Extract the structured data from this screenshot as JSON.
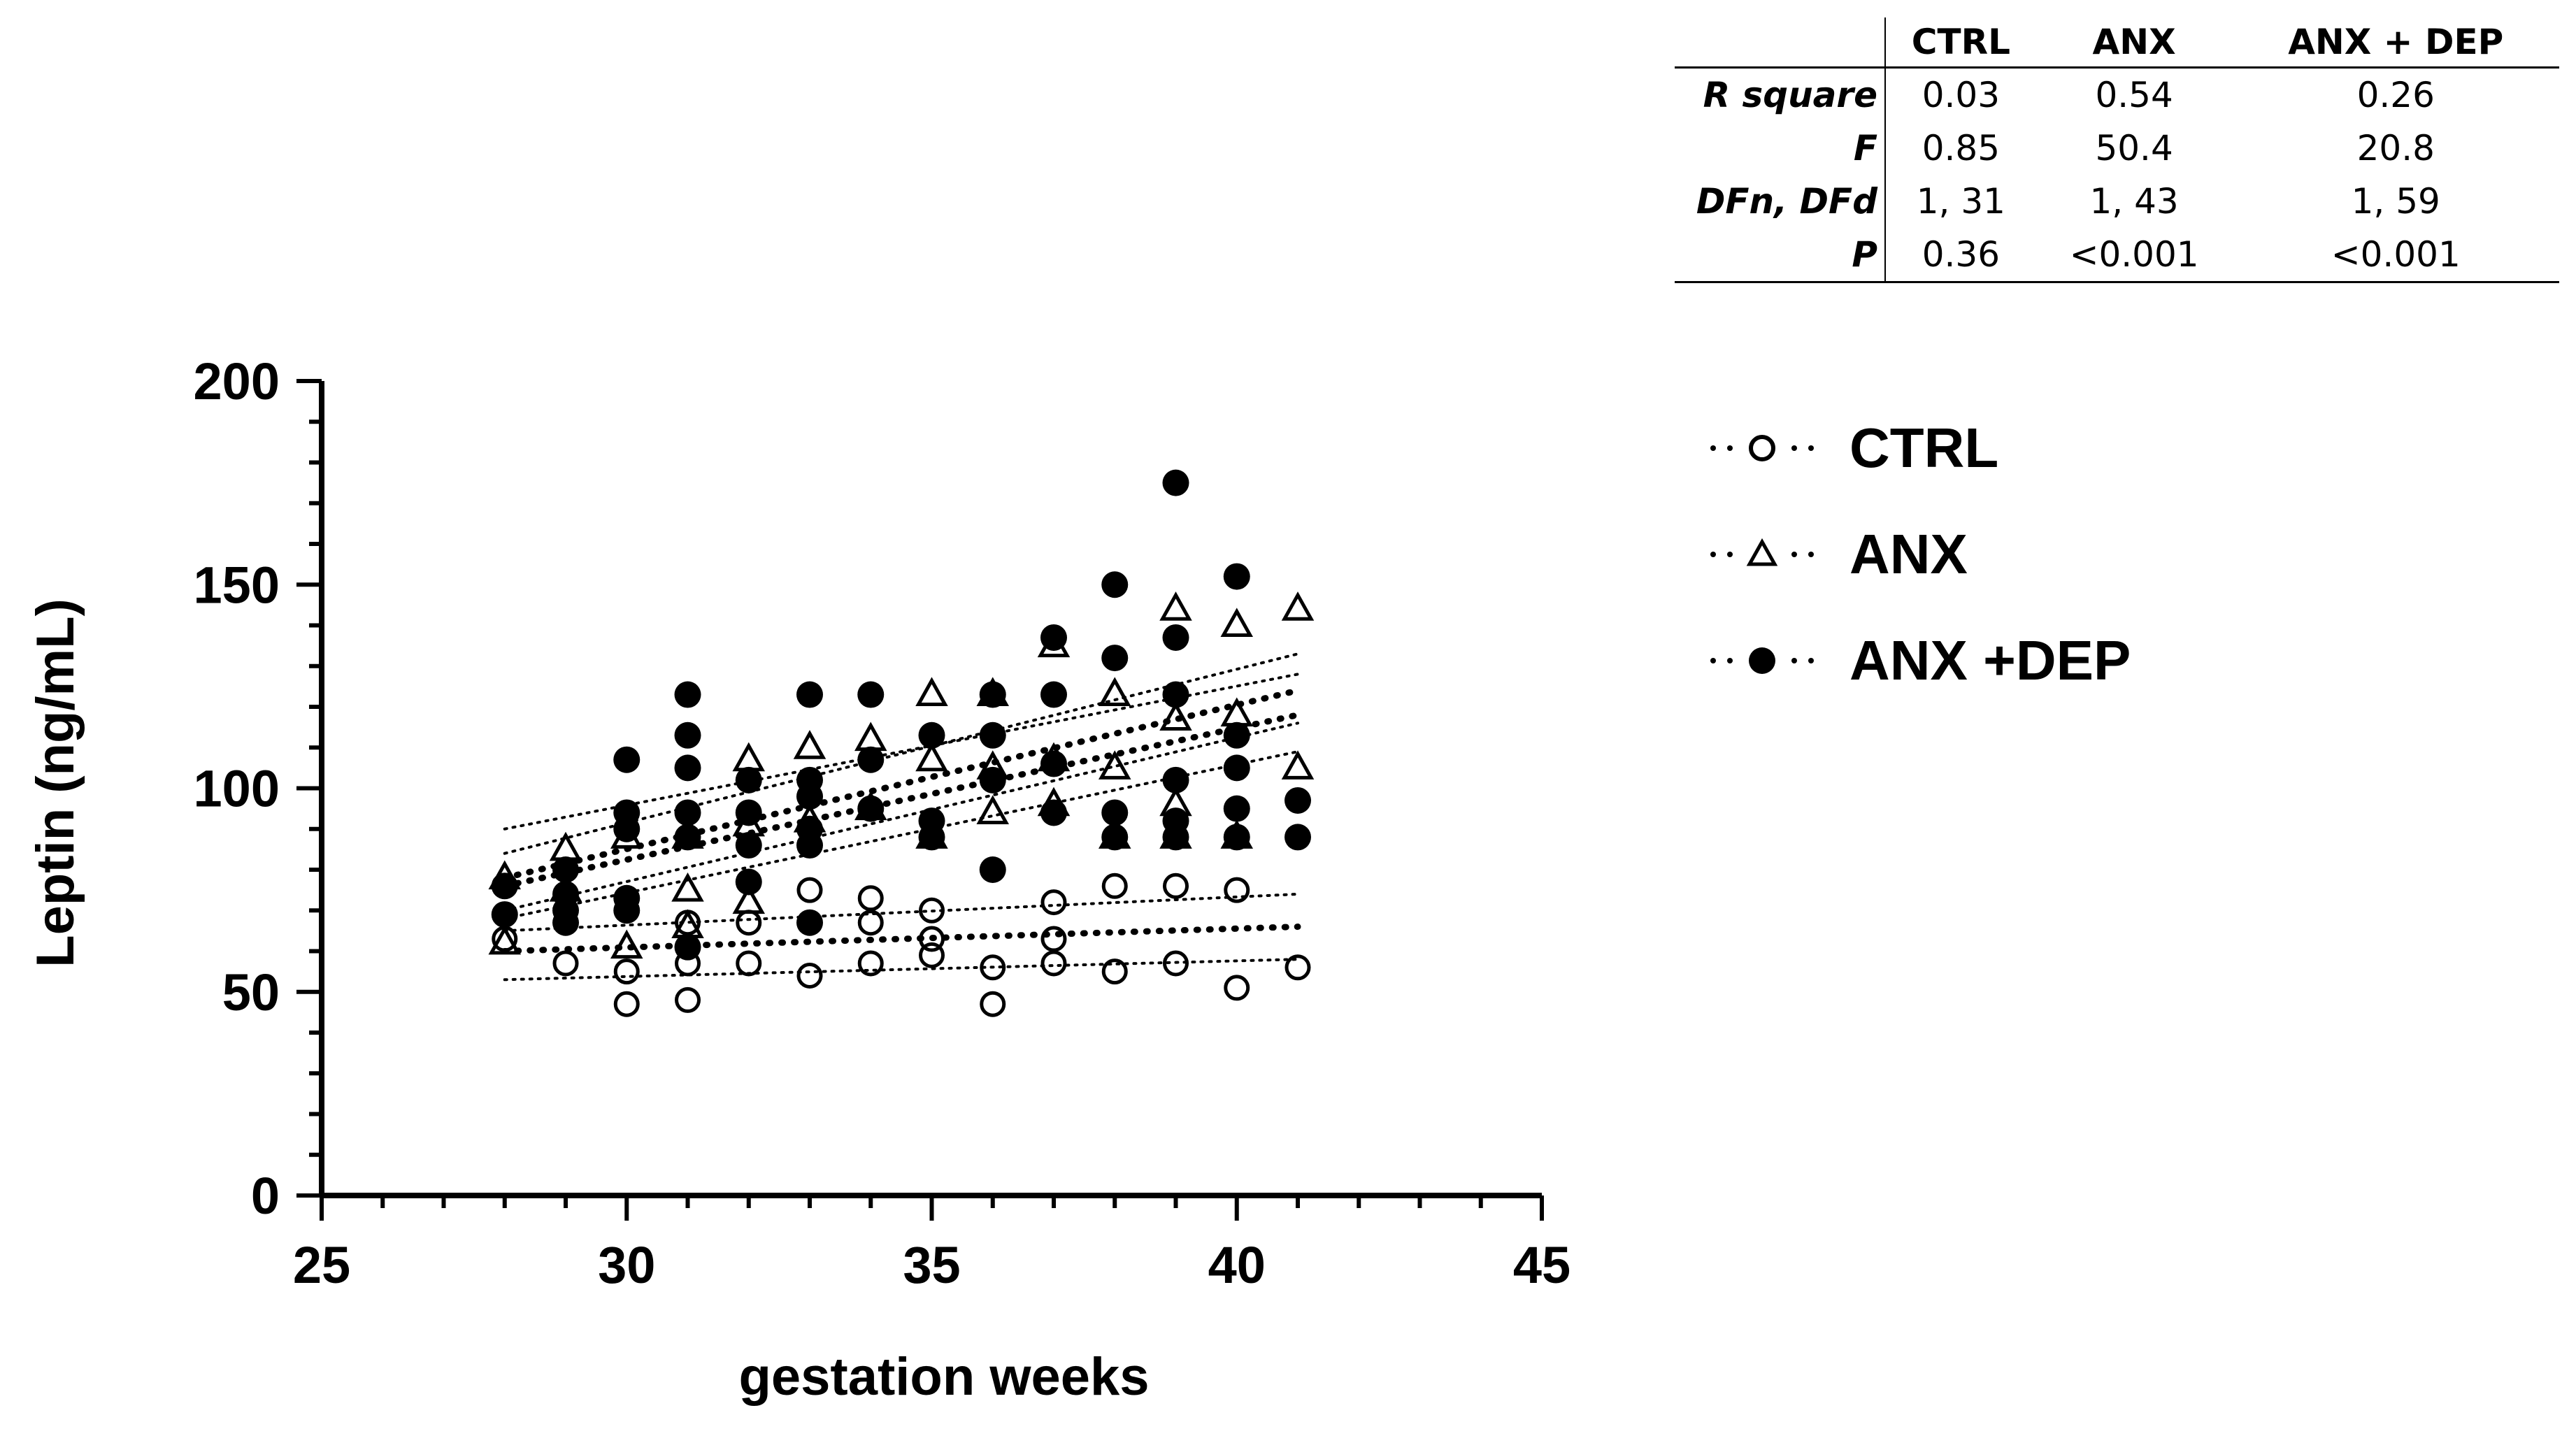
{
  "chart_data": {
    "type": "scatter",
    "title": "",
    "xlabel": "gestation weeks",
    "ylabel": "Leptin (ng/mL)",
    "xlim": [
      25,
      45
    ],
    "ylim": [
      0,
      200
    ],
    "x_ticks": [
      25,
      30,
      35,
      40,
      45
    ],
    "y_ticks": [
      0,
      50,
      100,
      150,
      200
    ],
    "grid": false,
    "legend_position": "right",
    "series": [
      {
        "name": "CTRL",
        "marker": "open-circle",
        "fit_line": {
          "x": [
            28,
            41
          ],
          "y": [
            60,
            66
          ]
        },
        "ci_upper": {
          "x": [
            28,
            41
          ],
          "y": [
            65,
            74
          ]
        },
        "ci_lower": {
          "x": [
            28,
            41
          ],
          "y": [
            53,
            58
          ]
        },
        "points": [
          {
            "x": 28,
            "y": 63
          },
          {
            "x": 29,
            "y": 57
          },
          {
            "x": 30,
            "y": 55
          },
          {
            "x": 30,
            "y": 47
          },
          {
            "x": 31,
            "y": 67
          },
          {
            "x": 31,
            "y": 57
          },
          {
            "x": 31,
            "y": 48
          },
          {
            "x": 32,
            "y": 67
          },
          {
            "x": 32,
            "y": 57
          },
          {
            "x": 33,
            "y": 75
          },
          {
            "x": 33,
            "y": 54
          },
          {
            "x": 34,
            "y": 73
          },
          {
            "x": 34,
            "y": 67
          },
          {
            "x": 34,
            "y": 57
          },
          {
            "x": 35,
            "y": 70
          },
          {
            "x": 35,
            "y": 63
          },
          {
            "x": 35,
            "y": 59
          },
          {
            "x": 36,
            "y": 56
          },
          {
            "x": 36,
            "y": 47
          },
          {
            "x": 37,
            "y": 72
          },
          {
            "x": 37,
            "y": 63
          },
          {
            "x": 37,
            "y": 57
          },
          {
            "x": 38,
            "y": 76
          },
          {
            "x": 38,
            "y": 55
          },
          {
            "x": 39,
            "y": 76
          },
          {
            "x": 39,
            "y": 57
          },
          {
            "x": 40,
            "y": 75
          },
          {
            "x": 40,
            "y": 51
          },
          {
            "x": 41,
            "y": 56
          }
        ]
      },
      {
        "name": "ANX",
        "marker": "open-triangle",
        "fit_line": {
          "x": [
            28,
            41
          ],
          "y": [
            78,
            124
          ]
        },
        "ci_upper": {
          "x": [
            28,
            41
          ],
          "y": [
            84,
            133
          ]
        },
        "ci_lower": {
          "x": [
            28,
            41
          ],
          "y": [
            70,
            116
          ]
        },
        "points": [
          {
            "x": 28,
            "y": 78
          },
          {
            "x": 28,
            "y": 62
          },
          {
            "x": 29,
            "y": 85
          },
          {
            "x": 29,
            "y": 75
          },
          {
            "x": 30,
            "y": 88
          },
          {
            "x": 30,
            "y": 61
          },
          {
            "x": 31,
            "y": 88
          },
          {
            "x": 31,
            "y": 75
          },
          {
            "x": 31,
            "y": 66
          },
          {
            "x": 32,
            "y": 107
          },
          {
            "x": 32,
            "y": 91
          },
          {
            "x": 32,
            "y": 72
          },
          {
            "x": 33,
            "y": 110
          },
          {
            "x": 33,
            "y": 92
          },
          {
            "x": 34,
            "y": 112
          },
          {
            "x": 34,
            "y": 95
          },
          {
            "x": 35,
            "y": 123
          },
          {
            "x": 35,
            "y": 107
          },
          {
            "x": 35,
            "y": 88
          },
          {
            "x": 36,
            "y": 123
          },
          {
            "x": 36,
            "y": 105
          },
          {
            "x": 36,
            "y": 94
          },
          {
            "x": 37,
            "y": 135
          },
          {
            "x": 37,
            "y": 107
          },
          {
            "x": 37,
            "y": 96
          },
          {
            "x": 38,
            "y": 123
          },
          {
            "x": 38,
            "y": 105
          },
          {
            "x": 38,
            "y": 88
          },
          {
            "x": 39,
            "y": 144
          },
          {
            "x": 39,
            "y": 117
          },
          {
            "x": 39,
            "y": 96
          },
          {
            "x": 39,
            "y": 88
          },
          {
            "x": 40,
            "y": 140
          },
          {
            "x": 40,
            "y": 118
          },
          {
            "x": 40,
            "y": 88
          },
          {
            "x": 41,
            "y": 144
          },
          {
            "x": 41,
            "y": 105
          }
        ]
      },
      {
        "name": "ANX +DEP",
        "marker": "filled-circle",
        "fit_line": {
          "x": [
            28,
            41
          ],
          "y": [
            76,
            118
          ]
        },
        "ci_upper": {
          "x": [
            28,
            41
          ],
          "y": [
            90,
            128
          ]
        },
        "ci_lower": {
          "x": [
            28,
            41
          ],
          "y": [
            68,
            109
          ]
        },
        "points": [
          {
            "x": 28,
            "y": 76
          },
          {
            "x": 28,
            "y": 69
          },
          {
            "x": 29,
            "y": 80
          },
          {
            "x": 29,
            "y": 74
          },
          {
            "x": 29,
            "y": 70
          },
          {
            "x": 29,
            "y": 67
          },
          {
            "x": 30,
            "y": 107
          },
          {
            "x": 30,
            "y": 94
          },
          {
            "x": 30,
            "y": 90
          },
          {
            "x": 30,
            "y": 73
          },
          {
            "x": 30,
            "y": 70
          },
          {
            "x": 31,
            "y": 123
          },
          {
            "x": 31,
            "y": 113
          },
          {
            "x": 31,
            "y": 105
          },
          {
            "x": 31,
            "y": 94
          },
          {
            "x": 31,
            "y": 88
          },
          {
            "x": 31,
            "y": 61
          },
          {
            "x": 32,
            "y": 102
          },
          {
            "x": 32,
            "y": 94
          },
          {
            "x": 32,
            "y": 86
          },
          {
            "x": 32,
            "y": 77
          },
          {
            "x": 33,
            "y": 123
          },
          {
            "x": 33,
            "y": 102
          },
          {
            "x": 33,
            "y": 98
          },
          {
            "x": 33,
            "y": 90
          },
          {
            "x": 33,
            "y": 86
          },
          {
            "x": 33,
            "y": 67
          },
          {
            "x": 34,
            "y": 123
          },
          {
            "x": 34,
            "y": 107
          },
          {
            "x": 34,
            "y": 95
          },
          {
            "x": 35,
            "y": 113
          },
          {
            "x": 35,
            "y": 92
          },
          {
            "x": 35,
            "y": 88
          },
          {
            "x": 36,
            "y": 123
          },
          {
            "x": 36,
            "y": 113
          },
          {
            "x": 36,
            "y": 102
          },
          {
            "x": 36,
            "y": 80
          },
          {
            "x": 37,
            "y": 137
          },
          {
            "x": 37,
            "y": 123
          },
          {
            "x": 37,
            "y": 106
          },
          {
            "x": 37,
            "y": 94
          },
          {
            "x": 38,
            "y": 150
          },
          {
            "x": 38,
            "y": 132
          },
          {
            "x": 38,
            "y": 94
          },
          {
            "x": 38,
            "y": 88
          },
          {
            "x": 39,
            "y": 175
          },
          {
            "x": 39,
            "y": 137
          },
          {
            "x": 39,
            "y": 123
          },
          {
            "x": 39,
            "y": 102
          },
          {
            "x": 39,
            "y": 92
          },
          {
            "x": 39,
            "y": 88
          },
          {
            "x": 40,
            "y": 152
          },
          {
            "x": 40,
            "y": 113
          },
          {
            "x": 40,
            "y": 105
          },
          {
            "x": 40,
            "y": 95
          },
          {
            "x": 40,
            "y": 88
          },
          {
            "x": 41,
            "y": 97
          },
          {
            "x": 41,
            "y": 88
          }
        ]
      }
    ]
  },
  "stats_table": {
    "columns": [
      "CTRL",
      "ANX",
      "ANX + DEP"
    ],
    "rows": [
      {
        "label": "R square",
        "values": [
          "0.03",
          "0.54",
          "0.26"
        ]
      },
      {
        "label": "F",
        "values": [
          "0.85",
          "50.4",
          "20.8"
        ]
      },
      {
        "label": "DFn, DFd",
        "values": [
          "1, 31",
          "1, 43",
          "1, 59"
        ]
      },
      {
        "label": "P",
        "values": [
          "0.36",
          "<0.001",
          "<0.001"
        ]
      }
    ]
  },
  "legend": {
    "items": [
      {
        "label": "CTRL",
        "marker": "open-circle"
      },
      {
        "label": "ANX",
        "marker": "open-triangle"
      },
      {
        "label": "ANX +DEP",
        "marker": "filled-circle"
      }
    ]
  }
}
